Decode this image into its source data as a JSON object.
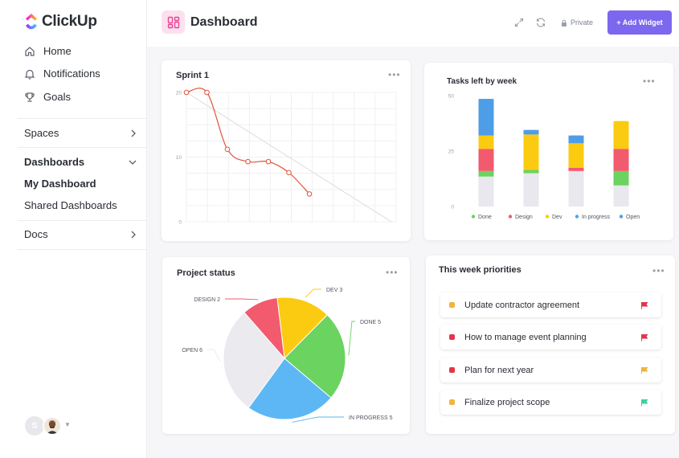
{
  "app": {
    "name": "ClickUp"
  },
  "sidebar": {
    "nav": [
      {
        "label": "Home",
        "icon": "home-icon"
      },
      {
        "label": "Notifications",
        "icon": "bell-icon"
      },
      {
        "label": "Goals",
        "icon": "trophy-icon"
      }
    ],
    "spaces_label": "Spaces",
    "dashboards_label": "Dashboards",
    "dashboard_items": [
      {
        "label": "My Dashboard",
        "active": true
      },
      {
        "label": "Shared Dashboards",
        "active": false
      }
    ],
    "docs_label": "Docs",
    "avatar_initial": "S"
  },
  "header": {
    "title": "Dashboard",
    "private_label": "Private",
    "add_widget_label": "+ Add Widget",
    "accent": "#7b68ee"
  },
  "sprint": {
    "title": "Sprint 1",
    "chart_data": {
      "type": "line",
      "yticks": [
        "20",
        "10",
        "0"
      ],
      "ylim": [
        0,
        20
      ],
      "x": [
        0,
        1,
        2,
        3,
        4,
        5,
        6
      ],
      "values": [
        20,
        20,
        11.2,
        9.3,
        9.3,
        7.6,
        4.3
      ],
      "ideal_line": {
        "from": [
          0,
          20
        ],
        "to": [
          10,
          0
        ]
      },
      "line_color": "#e2533b"
    }
  },
  "tasks_week": {
    "title": "Tasks left by week",
    "chart_data": {
      "type": "bar",
      "stacked": true,
      "yticks": [
        "50",
        "25",
        "0"
      ],
      "ylim": [
        0,
        50
      ],
      "categories": [
        "1",
        "2",
        "3",
        "4"
      ],
      "series": [
        {
          "name": "Done",
          "color": "#6bd35f",
          "values": [
            2.5,
            1.5,
            0,
            6.5
          ]
        },
        {
          "name": "Design",
          "color": "#f25a6e",
          "values": [
            10,
            0,
            1.5,
            10
          ]
        },
        {
          "name": "Dev",
          "color": "#fbcb11",
          "values": [
            6,
            16,
            11,
            12.5
          ]
        },
        {
          "name": "In progress",
          "color": "#49a7e8",
          "values": [
            0,
            0,
            0,
            0
          ]
        },
        {
          "name": "Open",
          "color": "#4e9ee7",
          "values": [
            16.5,
            2,
            3.5,
            0
          ]
        }
      ],
      "base_color": "#e8e8ee",
      "base_values": [
        13.5,
        15,
        16,
        9.5
      ],
      "legend_position": "bottom"
    }
  },
  "project_status": {
    "title": "Project status",
    "chart_data": {
      "type": "pie",
      "slices": [
        {
          "label": "DEV 3",
          "value": 3,
          "color": "#fbcb11"
        },
        {
          "label": "DONE 5",
          "value": 5,
          "color": "#6bd35f"
        },
        {
          "label": "IN PROGRESS 5",
          "value": 5,
          "color": "#5db7f5"
        },
        {
          "label": "OPEN 6",
          "value": 6,
          "color": "#eaeaef"
        },
        {
          "label": "DESIGN 2",
          "value": 2,
          "color": "#f25a6e"
        }
      ]
    }
  },
  "priorities": {
    "title": "This week priorities",
    "items": [
      {
        "label": "Update contractor agreement",
        "dot_color": "#f0b43c",
        "flag_color": "#e5354c"
      },
      {
        "label": "How to manage event planning",
        "dot_color": "#e5354c",
        "flag_color": "#e5354c"
      },
      {
        "label": "Plan for next year",
        "dot_color": "#e5354c",
        "flag_color": "#f0b43c"
      },
      {
        "label": "Finalize project scope",
        "dot_color": "#f0b43c",
        "flag_color": "#3cd2a0"
      }
    ]
  }
}
